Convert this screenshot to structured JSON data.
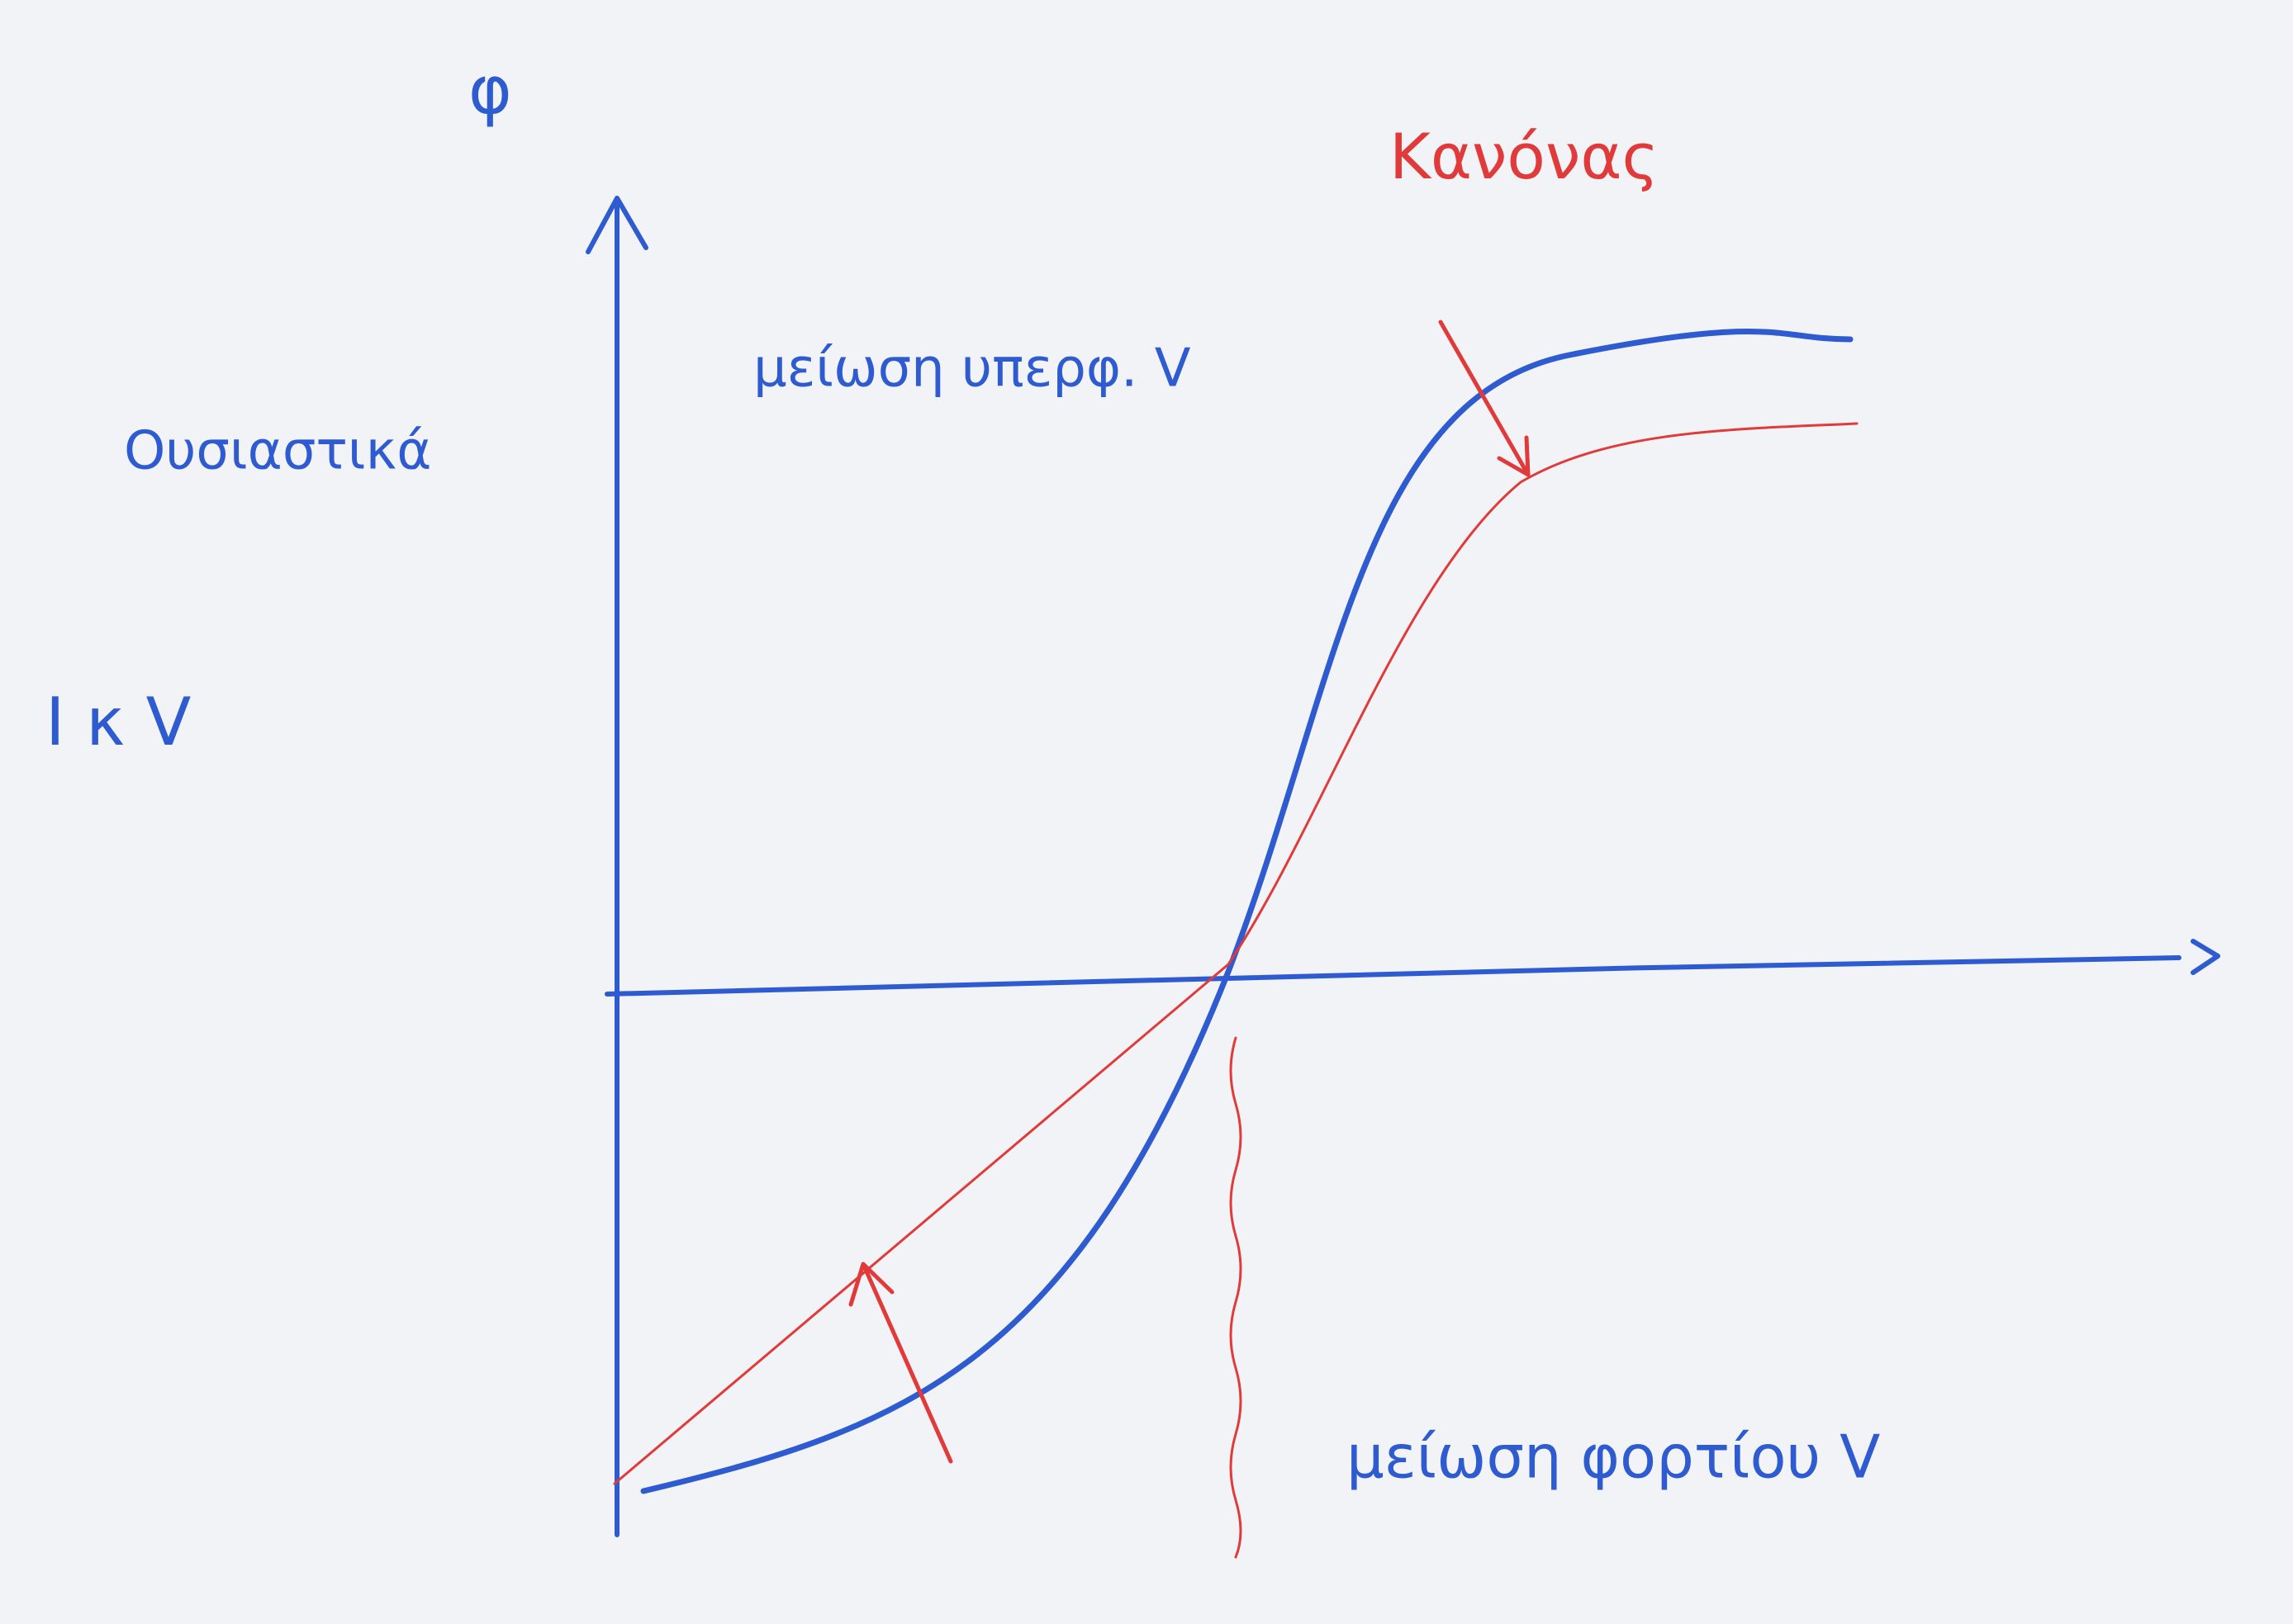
{
  "labels": {
    "y_axis": "φ",
    "left_top": "Ουσιαστικά",
    "left_mid": "I κ V",
    "top_note": "μείωση υπερφ. V",
    "red_note": "Κανόνας",
    "bottom_note": "μείωση φορτίου V"
  }
}
